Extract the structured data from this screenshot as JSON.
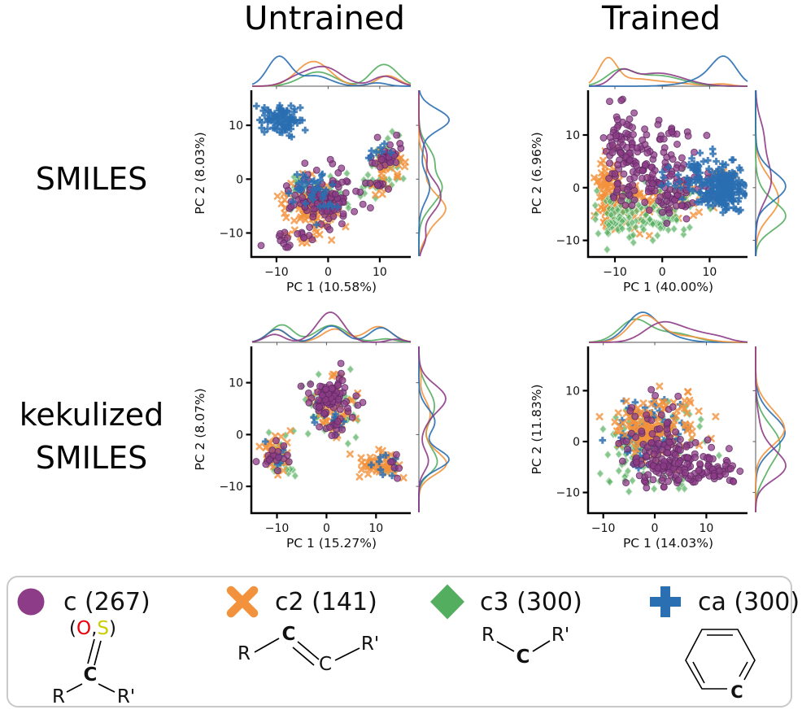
{
  "figure": {
    "background": "#ffffff",
    "description": "PCA jointplots of atom-environment embeddings"
  },
  "columns": {
    "untrained": "Untrained",
    "trained": "Trained"
  },
  "rows": {
    "top": "SMILES",
    "bottom_line1": "kekulized",
    "bottom_line2": "SMILES"
  },
  "palette": {
    "c": "#8d3c87",
    "c2": "#f2923c",
    "c3": "#54ae60",
    "ca": "#2a6fb2"
  },
  "chart_data": [
    {
      "type": "scatter",
      "name": "untrained-smiles",
      "row": "SMILES",
      "column": "Untrained",
      "xlabel": "PC 1 (10.58%)",
      "ylabel": "PC 2 (8.03%)",
      "xticks": [
        -10,
        0,
        10
      ],
      "yticks": [
        -10,
        0,
        10
      ],
      "xlim": [
        -14.7,
        16.0
      ],
      "ylim": [
        -14.3,
        16.5
      ],
      "marginals": {
        "top": "kde",
        "right": "kde"
      },
      "cluster_format": [
        "center_x",
        "center_y",
        "sd_x",
        "sd_y",
        "n_points"
      ],
      "series": [
        {
          "name": "c3",
          "marker": "diamond",
          "color": "#54ae60",
          "clusters": [
            [
              -2,
              -3,
              3.0,
              2.2,
              45
            ],
            [
              11.5,
              3.5,
              1.8,
              2.2,
              40
            ],
            [
              9,
              -1,
              1.2,
              0.8,
              12
            ]
          ]
        },
        {
          "name": "c2",
          "marker": "x",
          "color": "#f2923c",
          "clusters": [
            [
              -2.5,
              -5.5,
              2.8,
              2.0,
              95
            ],
            [
              -5,
              -10.5,
              2.2,
              1.0,
              12
            ],
            [
              12,
              2.5,
              1.5,
              1.5,
              22
            ],
            [
              10.5,
              -1.5,
              1.2,
              0.8,
              8
            ]
          ]
        },
        {
          "name": "c",
          "marker": "circle",
          "color": "#8d3c87",
          "clusters": [
            [
              -1,
              -3.5,
              3.2,
              2.6,
              110
            ],
            [
              -6.5,
              -11,
              1.8,
              1.0,
              18
            ],
            [
              11.5,
              4.5,
              1.6,
              1.6,
              28
            ],
            [
              9.5,
              -0.5,
              1.0,
              0.8,
              8
            ]
          ]
        },
        {
          "name": "ca",
          "marker": "plus",
          "color": "#2a6fb2",
          "clusters": [
            [
              -9.5,
              11,
              1.7,
              1.4,
              85
            ],
            [
              -2.5,
              -1.5,
              2.6,
              2.2,
              40
            ],
            [
              9.5,
              5.5,
              1.2,
              1.0,
              8
            ]
          ]
        }
      ]
    },
    {
      "type": "scatter",
      "name": "trained-smiles",
      "row": "SMILES",
      "column": "Trained",
      "xlabel": "PC 1 (40.00%)",
      "ylabel": "PC 2 (6.96%)",
      "xticks": [
        -10,
        0,
        10
      ],
      "yticks": [
        -10,
        0,
        10
      ],
      "xlim": [
        -15.5,
        18.0
      ],
      "ylim": [
        -13.0,
        18.5
      ],
      "marginals": {
        "top": "kde",
        "right": "kde"
      },
      "cluster_format": [
        "center_x",
        "center_y",
        "sd_x",
        "sd_y",
        "n_points"
      ],
      "series": [
        {
          "name": "c2",
          "marker": "x",
          "color": "#f2923c",
          "clusters": [
            [
              -11.5,
              -1,
              1.3,
              3.5,
              90
            ],
            [
              -6,
              -3,
              3.5,
              2.5,
              45
            ],
            [
              2,
              -3,
              4,
              2.5,
              25
            ],
            [
              12.5,
              2,
              1.5,
              1.2,
              8
            ]
          ]
        },
        {
          "name": "c3",
          "marker": "diamond",
          "color": "#54ae60",
          "clusters": [
            [
              -9,
              -5,
              2.5,
              2.2,
              70
            ],
            [
              -2,
              -6,
              4.0,
              1.8,
              60
            ],
            [
              3,
              -2,
              4,
              2.5,
              25
            ]
          ]
        },
        {
          "name": "c",
          "marker": "circle",
          "color": "#8d3c87",
          "clusters": [
            [
              -8.5,
              8,
              1.6,
              4.0,
              70
            ],
            [
              -3,
              2,
              3.5,
              3.5,
              80
            ],
            [
              3,
              0,
              4,
              3,
              60
            ],
            [
              1,
              11,
              3,
              2,
              15
            ]
          ]
        },
        {
          "name": "ca",
          "marker": "plus",
          "color": "#2a6fb2",
          "clusters": [
            [
              13,
              0,
              2.2,
              2.2,
              200
            ],
            [
              8,
              3,
              2,
              2.5,
              30
            ],
            [
              4,
              1,
              3,
              2,
              15
            ]
          ]
        }
      ]
    },
    {
      "type": "scatter",
      "name": "untrained-kekulized-smiles",
      "row": "kekulized SMILES",
      "column": "Untrained",
      "xlabel": "PC 1 (15.27%)",
      "ylabel": "PC 2 (8.07%)",
      "xticks": [
        -10,
        0,
        10
      ],
      "yticks": [
        -10,
        0,
        10
      ],
      "xlim": [
        -15.0,
        17.0
      ],
      "ylim": [
        -15.0,
        17.0
      ],
      "marginals": {
        "top": "kde",
        "right": "kde"
      },
      "cluster_format": [
        "center_x",
        "center_y",
        "sd_x",
        "sd_y",
        "n_points"
      ],
      "series": [
        {
          "name": "c3",
          "marker": "diamond",
          "color": "#54ae60",
          "clusters": [
            [
              1,
              5.5,
              2.8,
              3.0,
              45
            ],
            [
              -9.5,
              -4,
              1.7,
              2.0,
              28
            ],
            [
              -7.5,
              -6.5,
              1.0,
              0.8,
              6
            ],
            [
              12,
              -6,
              1.5,
              1.0,
              6
            ]
          ]
        },
        {
          "name": "c2",
          "marker": "x",
          "color": "#f2923c",
          "clusters": [
            [
              1.5,
              4,
              2.2,
              2.2,
              40
            ],
            [
              -10,
              -3.5,
              1.5,
              2.0,
              35
            ],
            [
              10.5,
              -6,
              2.2,
              1.3,
              55
            ],
            [
              2,
              11.5,
              0.7,
              0.6,
              4
            ]
          ]
        },
        {
          "name": "ca",
          "marker": "plus",
          "color": "#2a6fb2",
          "clusters": [
            [
              1,
              2.5,
              2.0,
              2.0,
              12
            ],
            [
              -10,
              -4.5,
              1.5,
              1.5,
              8
            ],
            [
              11,
              -5,
              1.8,
              1.2,
              10
            ]
          ]
        },
        {
          "name": "c",
          "marker": "circle",
          "color": "#8d3c87",
          "clusters": [
            [
              0.5,
              7,
              2.2,
              2.2,
              85
            ],
            [
              -10.5,
              -4.5,
              1.3,
              1.5,
              18
            ],
            [
              14,
              -6,
              0.8,
              0.8,
              6
            ],
            [
              2.5,
              2,
              1.5,
              1.5,
              10
            ]
          ]
        }
      ]
    },
    {
      "type": "scatter",
      "name": "trained-kekulized-smiles",
      "row": "kekulized SMILES",
      "column": "Trained",
      "xlabel": "PC 1 (14.03%)",
      "ylabel": "PC 2 (11.83%)",
      "xticks": [
        -10,
        0,
        10
      ],
      "yticks": [
        -10,
        0,
        10
      ],
      "xlim": [
        -12.8,
        18.0
      ],
      "ylim": [
        -13.9,
        18.7
      ],
      "marginals": {
        "top": "kde",
        "right": "kde"
      },
      "cluster_format": [
        "center_x",
        "center_y",
        "sd_x",
        "sd_y",
        "n_points"
      ],
      "series": [
        {
          "name": "c3",
          "marker": "diamond",
          "color": "#54ae60",
          "clusters": [
            [
              -4,
              -1.5,
              2.6,
              3.0,
              80
            ],
            [
              4,
              2,
              3.5,
              3.0,
              35
            ],
            [
              2,
              -7,
              4,
              1.5,
              10
            ]
          ]
        },
        {
          "name": "ca",
          "marker": "plus",
          "color": "#2a6fb2",
          "clusters": [
            [
              -2.5,
              1.5,
              2.6,
              2.8,
              70
            ],
            [
              3,
              5,
              3,
              3,
              12
            ]
          ]
        },
        {
          "name": "c2",
          "marker": "x",
          "color": "#f2923c",
          "clusters": [
            [
              -2,
              2.5,
              2.6,
              2.6,
              110
            ],
            [
              5,
              7,
              3,
              2,
              20
            ],
            [
              8,
              0,
              3,
              2,
              10
            ]
          ]
        },
        {
          "name": "c",
          "marker": "circle",
          "color": "#8d3c87",
          "clusters": [
            [
              2,
              -3.5,
              3.2,
              2.6,
              120
            ],
            [
              8.5,
              -5.5,
              3.2,
              1.8,
              60
            ],
            [
              0,
              3,
              2.5,
              3,
              25
            ],
            [
              13,
              -6.5,
              1.5,
              1.0,
              10
            ]
          ]
        }
      ]
    }
  ],
  "legend": {
    "entries": [
      {
        "label": "c (267)",
        "marker": "circle",
        "color": "#8d3c87",
        "structure": {
          "name": "carbonyl-thiocarbonyl-group",
          "open": "(",
          "o": "O",
          "comma": ",",
          "s": "S",
          "close": ")",
          "o_color": "#e8000b",
          "s_color": "#cccc00",
          "c": "C",
          "r": "R",
          "rp": "R'"
        }
      },
      {
        "label": "c2 (141)",
        "marker": "x",
        "color": "#f2923c",
        "structure": {
          "name": "alkene-sp2-carbon",
          "c1": "C",
          "c2": "C",
          "r": "R",
          "rp": "R'"
        }
      },
      {
        "label": "c3 (300)",
        "marker": "diamond",
        "color": "#54ae60",
        "structure": {
          "name": "sp3-carbon",
          "c": "C",
          "r": "R",
          "rp": "R'"
        }
      },
      {
        "label": "ca (300)",
        "marker": "plus",
        "color": "#2a6fb2",
        "structure": {
          "name": "aromatic-carbon-benzene",
          "c": "C"
        }
      }
    ]
  }
}
